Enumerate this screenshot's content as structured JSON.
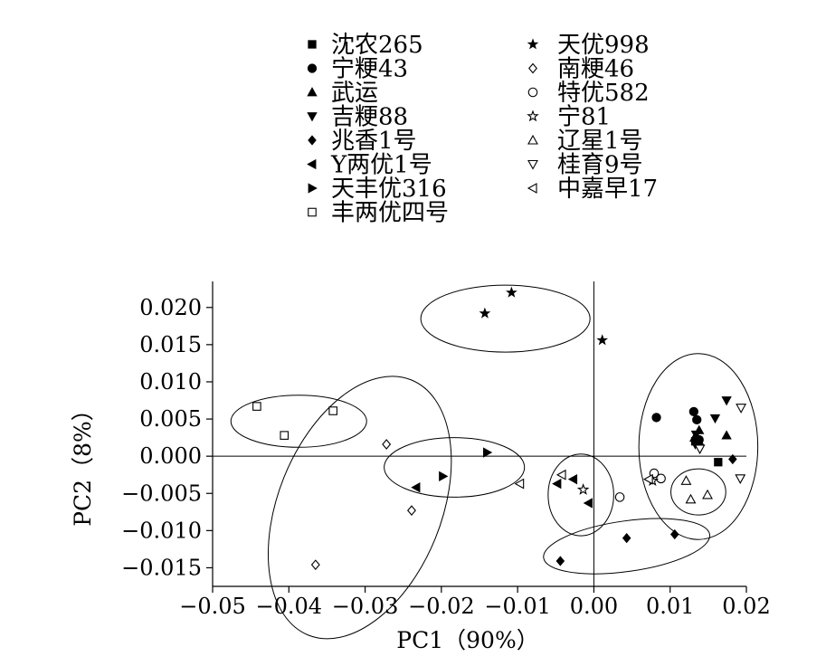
{
  "chart_data": {
    "type": "scatter",
    "xlabel": "PC1（90%）",
    "ylabel": "PC2（8%）",
    "xlim": [
      -0.05,
      0.02
    ],
    "ylim": [
      -0.0175,
      0.0235
    ],
    "x_ticks": [
      "−0.05",
      "−0.04",
      "−0.03",
      "−0.02",
      "−0.01",
      "0.00",
      "0.01",
      "0.02"
    ],
    "x_tick_values": [
      -0.05,
      -0.04,
      -0.03,
      -0.02,
      -0.01,
      0.0,
      0.01,
      0.02
    ],
    "y_ticks": [
      "0.020",
      "0.015",
      "0.010",
      "0.005",
      "0.000",
      "−0.005",
      "−0.010",
      "−0.015"
    ],
    "y_tick_values": [
      0.02,
      0.015,
      0.01,
      0.005,
      0.0,
      -0.005,
      -0.01,
      -0.015
    ],
    "legend_position": "top",
    "reference_lines": {
      "x": 0.0,
      "y": 0.0
    },
    "series": [
      {
        "name": "沈农265",
        "marker": "filled-square",
        "points": [
          [
            0.0133,
            0.002
          ],
          [
            0.0163,
            -0.0008
          ]
        ]
      },
      {
        "name": "宁粳43",
        "marker": "filled-circle",
        "points": [
          [
            0.0082,
            0.0052
          ],
          [
            0.0131,
            0.006
          ],
          [
            0.0135,
            0.0049
          ],
          [
            0.0138,
            0.0022
          ]
        ]
      },
      {
        "name": "武运",
        "marker": "filled-triangle-up",
        "points": [
          [
            0.0138,
            0.0035
          ],
          [
            0.0138,
            0.002
          ],
          [
            0.0174,
            0.0028
          ],
          [
            0.0132,
            0.0025
          ]
        ]
      },
      {
        "name": "吉粳88",
        "marker": "filled-triangle-down",
        "points": [
          [
            0.0174,
            0.0075
          ],
          [
            0.0159,
            0.0051
          ],
          [
            0.0134,
            0.0029
          ],
          [
            0.0133,
            0.0016
          ]
        ]
      },
      {
        "name": "兆香1号",
        "marker": "filled-diamond",
        "points": [
          [
            -0.0044,
            -0.0141
          ],
          [
            0.0043,
            -0.011
          ],
          [
            0.0106,
            -0.0105
          ],
          [
            0.0182,
            -0.0004
          ]
        ]
      },
      {
        "name": "Y两优1号",
        "marker": "filled-triangle-left",
        "points": [
          [
            -0.0233,
            -0.0042
          ],
          [
            -0.0048,
            -0.0037
          ],
          [
            -0.0027,
            -0.0031
          ],
          [
            -0.0007,
            -0.0063
          ]
        ]
      },
      {
        "name": "天丰优316",
        "marker": "filled-triangle-right",
        "points": [
          [
            -0.0198,
            -0.0027
          ],
          [
            -0.014,
            0.0005
          ]
        ]
      },
      {
        "name": "丰两优四号",
        "marker": "open-square",
        "points": [
          [
            -0.0442,
            0.0067
          ],
          [
            -0.0406,
            0.0028
          ],
          [
            -0.0342,
            0.0061
          ]
        ]
      },
      {
        "name": "天优998",
        "marker": "filled-star",
        "points": [
          [
            -0.0143,
            0.0192
          ],
          [
            -0.0108,
            0.022
          ],
          [
            0.0011,
            0.0156
          ]
        ]
      },
      {
        "name": "南粳46",
        "marker": "open-diamond",
        "points": [
          [
            -0.0365,
            -0.0146
          ],
          [
            -0.0239,
            -0.0073
          ],
          [
            -0.0272,
            0.0016
          ]
        ]
      },
      {
        "name": "特优582",
        "marker": "open-circle",
        "points": [
          [
            0.0034,
            -0.0055
          ],
          [
            0.0079,
            -0.0023
          ],
          [
            0.0088,
            -0.003
          ]
        ]
      },
      {
        "name": "宁81",
        "marker": "open-star",
        "points": [
          [
            -0.0014,
            -0.0045
          ],
          [
            0.0077,
            -0.0033
          ]
        ]
      },
      {
        "name": "辽星1号",
        "marker": "open-triangle-up",
        "points": [
          [
            0.0121,
            -0.0033
          ],
          [
            0.0127,
            -0.0058
          ],
          [
            0.0149,
            -0.0052
          ]
        ]
      },
      {
        "name": "桂育9号",
        "marker": "open-triangle-down",
        "points": [
          [
            0.0193,
            0.0065
          ],
          [
            0.0192,
            -0.003
          ],
          [
            0.0139,
            0.001
          ]
        ]
      },
      {
        "name": "中嘉早17",
        "marker": "open-triangle-left",
        "points": [
          [
            -0.0097,
            -0.0037
          ],
          [
            -0.0042,
            -0.0025
          ],
          [
            0.0072,
            -0.0031
          ]
        ]
      }
    ],
    "cluster_ellipses": [
      {
        "cx": -0.0116,
        "cy": 0.0185,
        "rx": 0.0111,
        "ry": 0.0045,
        "rotate": 0
      },
      {
        "cx": -0.0387,
        "cy": 0.0047,
        "rx": 0.0089,
        "ry": 0.0035,
        "rotate": 0
      },
      {
        "cx": -0.0307,
        "cy": -0.0069,
        "rx": 0.0107,
        "ry": 0.0185,
        "rotate": 22
      },
      {
        "cx": -0.0183,
        "cy": -0.0015,
        "rx": 0.0092,
        "ry": 0.004,
        "rotate": 0
      },
      {
        "cx": -0.0017,
        "cy": -0.0052,
        "rx": 0.0043,
        "ry": 0.0055,
        "rotate": 0
      },
      {
        "cx": 0.0043,
        "cy": -0.0121,
        "rx": 0.011,
        "ry": 0.0034,
        "rotate": -8
      },
      {
        "cx": 0.0137,
        "cy": 0.0013,
        "rx": 0.0078,
        "ry": 0.0125,
        "rotate": 0
      },
      {
        "cx": 0.0137,
        "cy": -0.0048,
        "rx": 0.0036,
        "ry": 0.0031,
        "rotate": 0
      }
    ]
  },
  "legend": {
    "left": [
      "沈农265",
      "宁粳43",
      "武运",
      "吉粳88",
      "兆香1号",
      "Y两优1号",
      "天丰优316",
      "丰两优四号"
    ],
    "right": [
      "天优998",
      "南粳46",
      "特优582",
      "宁81",
      "辽星1号",
      "桂育9号",
      "中嘉早17"
    ]
  }
}
